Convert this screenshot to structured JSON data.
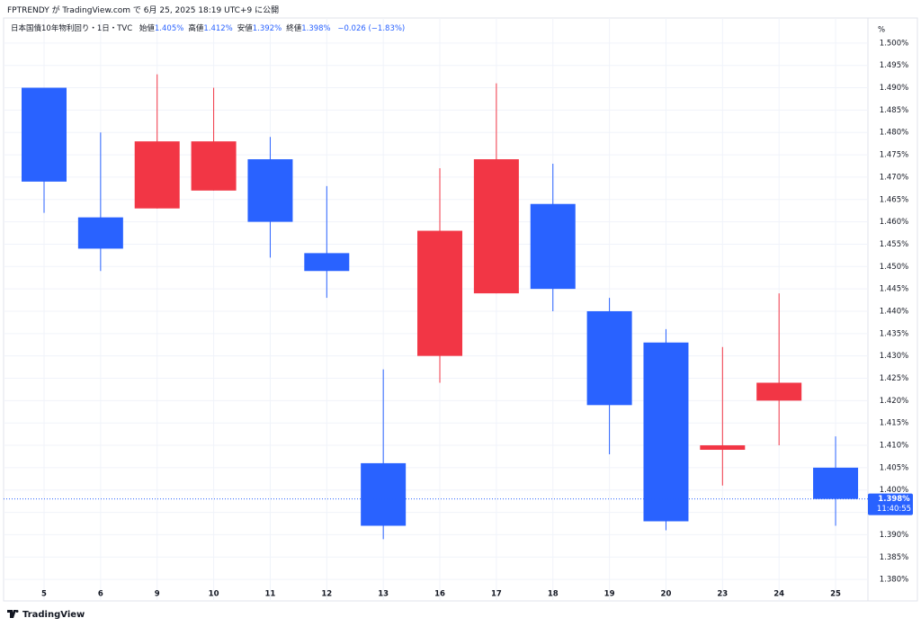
{
  "published": "FPTRENDY が TradingView.com で 6月 25, 2025 18:19 UTC+9 に公開",
  "footer": "TradingView",
  "chart_data": {
    "type": "candlestick",
    "title": "日本国債10年物利回り・1日・TVC",
    "ohlc_legend": [
      {
        "label": "始値",
        "text": "1.405%"
      },
      {
        "label": "高値",
        "text": "1.412%"
      },
      {
        "label": "安値",
        "text": "1.392%"
      },
      {
        "label": "終値",
        "text": "1.398%"
      }
    ],
    "change": "−0.026 (−1.83%)",
    "unit": "%",
    "categories": [
      "5",
      "6",
      "9",
      "10",
      "11",
      "12",
      "13",
      "16",
      "17",
      "18",
      "19",
      "20",
      "23",
      "24",
      "25"
    ],
    "open": [
      1.49,
      1.461,
      1.463,
      1.467,
      1.474,
      1.453,
      1.406,
      1.43,
      1.444,
      1.464,
      1.44,
      1.433,
      1.409,
      1.42,
      1.405
    ],
    "high": [
      1.49,
      1.48,
      1.493,
      1.49,
      1.479,
      1.468,
      1.427,
      1.472,
      1.491,
      1.473,
      1.443,
      1.436,
      1.432,
      1.444,
      1.412
    ],
    "low": [
      1.462,
      1.449,
      1.463,
      1.467,
      1.452,
      1.443,
      1.389,
      1.424,
      1.444,
      1.44,
      1.408,
      1.391,
      1.401,
      1.41,
      1.392
    ],
    "close": [
      1.469,
      1.454,
      1.478,
      1.478,
      1.46,
      1.449,
      1.392,
      1.458,
      1.474,
      1.445,
      1.419,
      1.393,
      1.41,
      1.424,
      1.398
    ],
    "up_color": "#f23645",
    "down_color": "#2962ff",
    "ylim": [
      1.3768,
      1.5048
    ],
    "yticks": [
      {
        "value": 1.38,
        "label": "1.380%"
      },
      {
        "value": 1.385,
        "label": "1.385%"
      },
      {
        "value": 1.39,
        "label": "1.390%"
      },
      {
        "value": 1.395,
        "label": "1.395%"
      },
      {
        "value": 1.4,
        "label": "1.400%"
      },
      {
        "value": 1.405,
        "label": "1.405%"
      },
      {
        "value": 1.41,
        "label": "1.410%"
      },
      {
        "value": 1.415,
        "label": "1.415%"
      },
      {
        "value": 1.42,
        "label": "1.420%"
      },
      {
        "value": 1.425,
        "label": "1.425%"
      },
      {
        "value": 1.43,
        "label": "1.430%"
      },
      {
        "value": 1.435,
        "label": "1.435%"
      },
      {
        "value": 1.44,
        "label": "1.440%"
      },
      {
        "value": 1.445,
        "label": "1.445%"
      },
      {
        "value": 1.45,
        "label": "1.450%"
      },
      {
        "value": 1.455,
        "label": "1.455%"
      },
      {
        "value": 1.46,
        "label": "1.460%"
      },
      {
        "value": 1.465,
        "label": "1.465%"
      },
      {
        "value": 1.47,
        "label": "1.470%"
      },
      {
        "value": 1.475,
        "label": "1.475%"
      },
      {
        "value": 1.48,
        "label": "1.480%"
      },
      {
        "value": 1.485,
        "label": "1.485%"
      },
      {
        "value": 1.49,
        "label": "1.490%"
      },
      {
        "value": 1.495,
        "label": "1.495%"
      },
      {
        "value": 1.5,
        "label": "1.500%"
      }
    ],
    "grid": true,
    "last_price": {
      "value": 1.398,
      "label": "1.398%",
      "countdown": "11:40:55"
    }
  }
}
